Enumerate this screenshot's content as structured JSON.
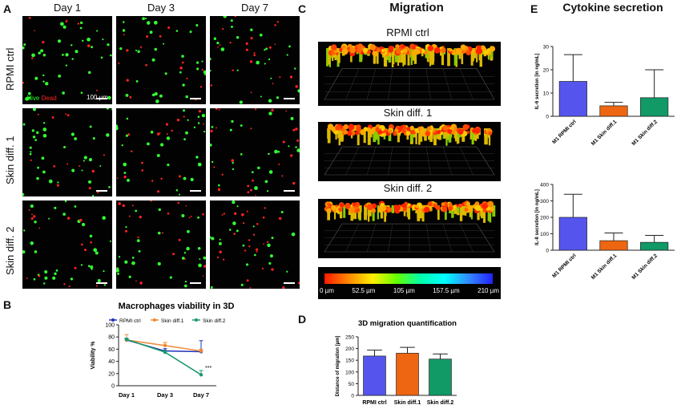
{
  "panelA": {
    "label": "A",
    "columns": [
      "Day 1",
      "Day 3",
      "Day 7"
    ],
    "rows": [
      "RPMI ctrl",
      "Skin diff. 1",
      "Skin diff. 2"
    ],
    "legend_alive": "Alive",
    "legend_dead": "Dead",
    "scale_label": "100 µm"
  },
  "panelB": {
    "label": "B"
  },
  "panelC": {
    "label": "C",
    "title": "Migration",
    "views": [
      "RPMI ctrl",
      "Skin diff. 1",
      "Skin diff. 2"
    ],
    "colorbar_ticks": [
      "0 µm",
      "52.5 µm",
      "105 µm",
      "157.5 µm",
      "210 µm"
    ]
  },
  "panelD": {
    "label": "D"
  },
  "panelE": {
    "label": "E",
    "title": "Cytokine secretion"
  },
  "chart_data": [
    {
      "id": "viability",
      "type": "line",
      "title": "Macrophages viability in 3D",
      "ylabel": "Viability %",
      "categories": [
        "Day 1",
        "Day 3",
        "Day 7"
      ],
      "ylim": [
        0,
        100
      ],
      "yticks": [
        0,
        20,
        40,
        60,
        80,
        100
      ],
      "legend": "top",
      "annotation": "***",
      "series": [
        {
          "name": "RPMI ctrl",
          "color": "#2233bb",
          "values": [
            75,
            57,
            56
          ],
          "err": [
            2,
            4,
            18
          ]
        },
        {
          "name": "Skin diff.1",
          "color": "#ee8833",
          "values": [
            75,
            66,
            57
          ],
          "err": [
            9,
            5,
            3
          ]
        },
        {
          "name": "Skin diff.2",
          "color": "#1a9a6a",
          "values": [
            76,
            55,
            18
          ],
          "err": [
            2,
            3,
            7
          ]
        }
      ]
    },
    {
      "id": "migration",
      "type": "bar",
      "title": "3D migration quantification",
      "ylabel": "Distance of migration [µm]",
      "categories": [
        "RPMI ctrl",
        "Skin diff.1",
        "Skin diff.2"
      ],
      "values": [
        168,
        180,
        155
      ],
      "err": [
        25,
        25,
        22
      ],
      "colors": [
        "#5555ee",
        "#ee6611",
        "#119966"
      ],
      "ylim": [
        0,
        250
      ],
      "yticks": [
        0,
        50,
        100,
        150,
        200,
        250
      ]
    },
    {
      "id": "il6",
      "type": "bar",
      "title": "",
      "ylabel": "IL-6 secretion [in ng/mL]",
      "categories": [
        "M1 RPMI ctrl",
        "M1 Skin diff.1",
        "M1 Skin diff.2"
      ],
      "values": [
        15,
        4.5,
        8
      ],
      "err": [
        11.5,
        1.5,
        12
      ],
      "colors": [
        "#5555ee",
        "#ee6611",
        "#119966"
      ],
      "ylim": [
        0,
        30
      ],
      "yticks": [
        0,
        10,
        20,
        30
      ]
    },
    {
      "id": "il8",
      "type": "bar",
      "title": "",
      "ylabel": "IL-8 secretion [in ng/mL]",
      "categories": [
        "M1 RPMI ctrl",
        "M1 Skin diff.1",
        "M1 Skin diff.2"
      ],
      "values": [
        200,
        58,
        48
      ],
      "err": [
        140,
        47,
        42
      ],
      "colors": [
        "#5555ee",
        "#ee6611",
        "#119966"
      ],
      "ylim": [
        0,
        400
      ],
      "yticks": [
        0,
        100,
        200,
        300,
        400
      ]
    }
  ]
}
